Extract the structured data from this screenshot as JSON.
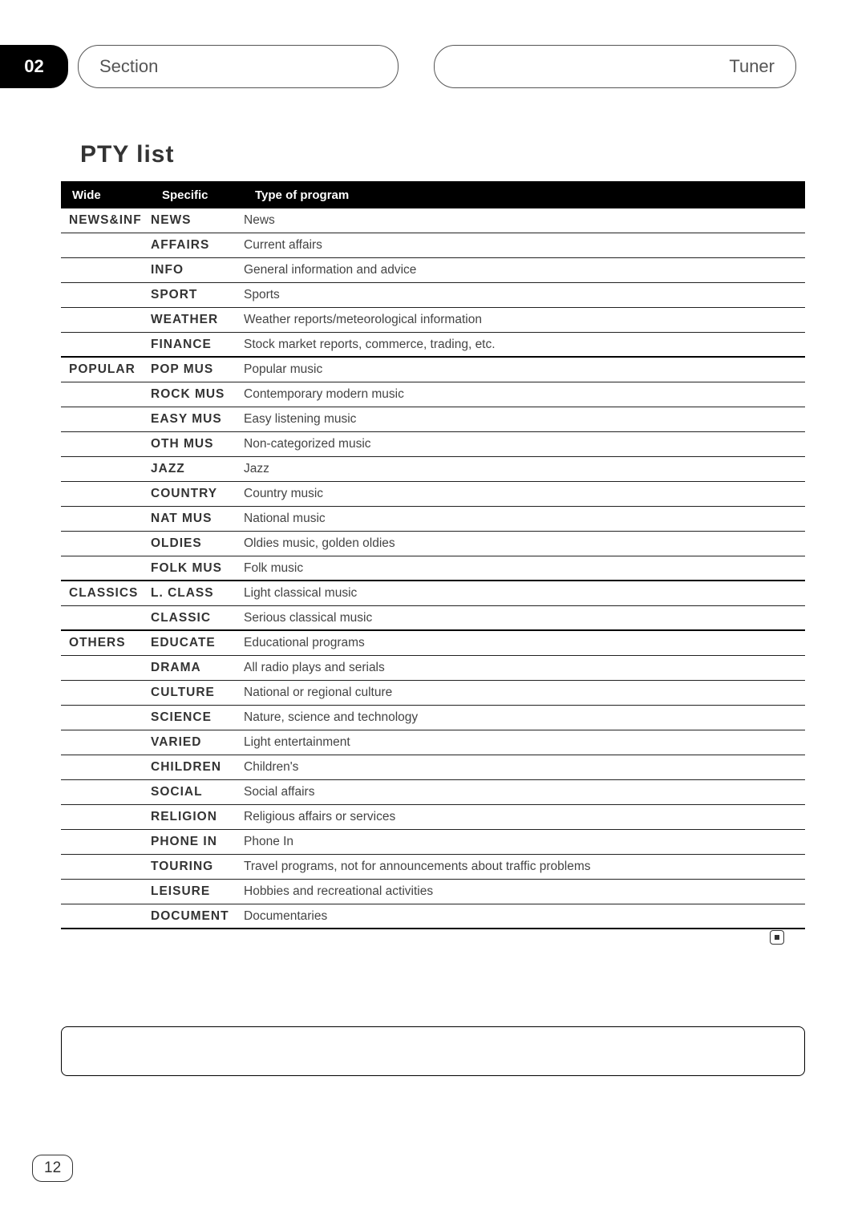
{
  "header": {
    "section_number": "02",
    "left_capsule_text": "Section",
    "right_capsule_text": "Tuner"
  },
  "title": "PTY list",
  "table": {
    "headers": {
      "wide": "Wide",
      "specific": "Specific",
      "content": "Type of program"
    },
    "groups": [
      {
        "wide": "NEWS&INF",
        "rows": [
          {
            "specific": "NEWS",
            "content": "News"
          },
          {
            "specific": "AFFAIRS",
            "content": "Current affairs"
          },
          {
            "specific": "INFO",
            "content": "General information and advice"
          },
          {
            "specific": "SPORT",
            "content": "Sports"
          },
          {
            "specific": "WEATHER",
            "content": "Weather reports/meteorological information"
          },
          {
            "specific": "FINANCE",
            "content": "Stock market reports, commerce, trading, etc."
          }
        ]
      },
      {
        "wide": "POPULAR",
        "rows": [
          {
            "specific": "POP MUS",
            "content": "Popular music"
          },
          {
            "specific": "ROCK MUS",
            "content": "Contemporary modern music"
          },
          {
            "specific": "EASY MUS",
            "content": "Easy listening music"
          },
          {
            "specific": "OTH MUS",
            "content": "Non-categorized music"
          },
          {
            "specific": "JAZZ",
            "content": "Jazz"
          },
          {
            "specific": "COUNTRY",
            "content": "Country music"
          },
          {
            "specific": "NAT MUS",
            "content": "National music"
          },
          {
            "specific": "OLDIES",
            "content": "Oldies music, golden oldies"
          },
          {
            "specific": "FOLK MUS",
            "content": "Folk music"
          }
        ]
      },
      {
        "wide": "CLASSICS",
        "rows": [
          {
            "specific": "L. CLASS",
            "content": "Light classical music"
          },
          {
            "specific": "CLASSIC",
            "content": "Serious classical music"
          }
        ]
      },
      {
        "wide": "OTHERS",
        "rows": [
          {
            "specific": "EDUCATE",
            "content": "Educational programs"
          },
          {
            "specific": "DRAMA",
            "content": "All radio plays and serials"
          },
          {
            "specific": "CULTURE",
            "content": "National or regional culture"
          },
          {
            "specific": "SCIENCE",
            "content": "Nature, science and technology"
          },
          {
            "specific": "VARIED",
            "content": "Light entertainment"
          },
          {
            "specific": "CHILDREN",
            "content": "Children's"
          },
          {
            "specific": "SOCIAL",
            "content": "Social affairs"
          },
          {
            "specific": "RELIGION",
            "content": "Religious affairs or services"
          },
          {
            "specific": "PHONE IN",
            "content": "Phone In"
          },
          {
            "specific": "TOURING",
            "content": "Travel programs, not for announcements about traffic problems"
          },
          {
            "specific": "LEISURE",
            "content": "Hobbies and recreational activities"
          },
          {
            "specific": "DOCUMENT",
            "content": "Documentaries"
          }
        ]
      }
    ]
  },
  "page_number": "12",
  "colors": {
    "text": "#333333",
    "header_bg": "#000000",
    "header_text": "#ffffff",
    "border": "#222222"
  }
}
